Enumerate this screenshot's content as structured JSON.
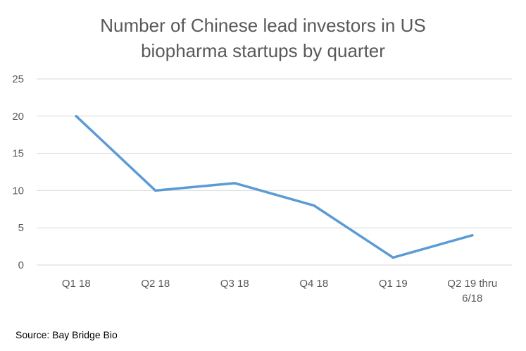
{
  "chart_data": {
    "type": "line",
    "title_lines": [
      "Number of Chinese lead investors in US",
      "biopharma startups by quarter"
    ],
    "categories": [
      "Q1 18",
      "Q2 18",
      "Q3 18",
      "Q4 18",
      "Q1 19",
      "Q2 19 thru 6/18"
    ],
    "category_label_lines": [
      [
        "Q1 18"
      ],
      [
        "Q2 18"
      ],
      [
        "Q3 18"
      ],
      [
        "Q4 18"
      ],
      [
        "Q1 19"
      ],
      [
        "Q2 19 thru",
        "6/18"
      ]
    ],
    "series": [
      {
        "values": [
          20,
          10,
          11,
          8,
          1,
          4
        ],
        "color": "#5b9bd5"
      }
    ],
    "ylim": [
      0,
      25
    ],
    "yticks": [
      "0",
      "5",
      "10",
      "15",
      "20",
      "25"
    ],
    "grid": true,
    "xlabel": "",
    "ylabel": ""
  },
  "source": "Source: Bay Bridge Bio",
  "colors": {
    "line": "#5b9bd5",
    "grid": "#d9d9d9",
    "text": "#595959"
  }
}
